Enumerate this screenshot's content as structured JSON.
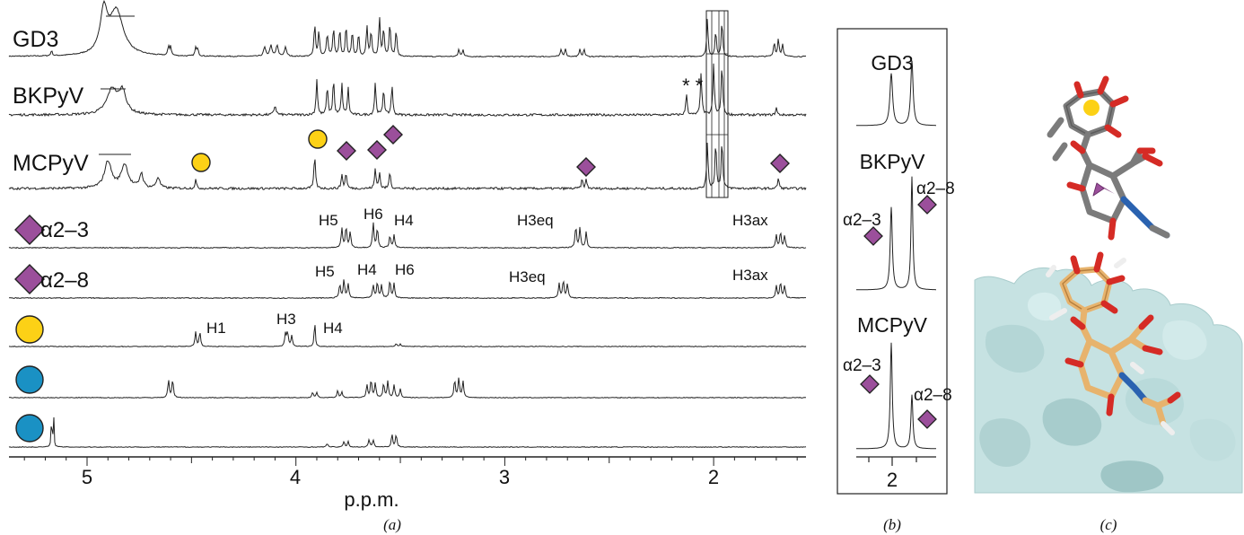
{
  "panel_a": {
    "caption": "(a)",
    "x_axis_label": "p.p.m.",
    "x_ticks": [
      "5",
      "4",
      "3",
      "2"
    ],
    "spectra": [
      {
        "label": "GD3"
      },
      {
        "label": "BKPyV"
      },
      {
        "label": "MCPyV"
      },
      {
        "label": "α2–3"
      },
      {
        "label": "α2–8"
      },
      {
        "label": ""
      },
      {
        "label": ""
      },
      {
        "label": ""
      }
    ],
    "peak_labels": {
      "a23": [
        "H5",
        "H6",
        "H4",
        "H3eq",
        "H3ax"
      ],
      "a28": [
        "H5",
        "H4",
        "H6",
        "H3eq",
        "H3ax"
      ],
      "gal": [
        "H1",
        "H3",
        "H4"
      ]
    },
    "asterisks": "* *"
  },
  "panel_b": {
    "caption": "(b)",
    "tick": "2",
    "labels": [
      "GD3",
      "BKPyV",
      "MCPyV"
    ],
    "annotations": [
      "α2–3",
      "α2–8",
      "α2–3",
      "α2–8"
    ]
  },
  "panel_c": {
    "caption": "(c)"
  },
  "colors": {
    "sialic_acid": "#9b4f9b",
    "galactose": "#fcd116",
    "glucose": "#1a91c4",
    "carbon_gray": "#7b7b7b",
    "carbon_tan": "#e7b36d",
    "oxygen": "#d52b25",
    "nitrogen": "#2a62b0",
    "surface": "#c6e2e2"
  }
}
